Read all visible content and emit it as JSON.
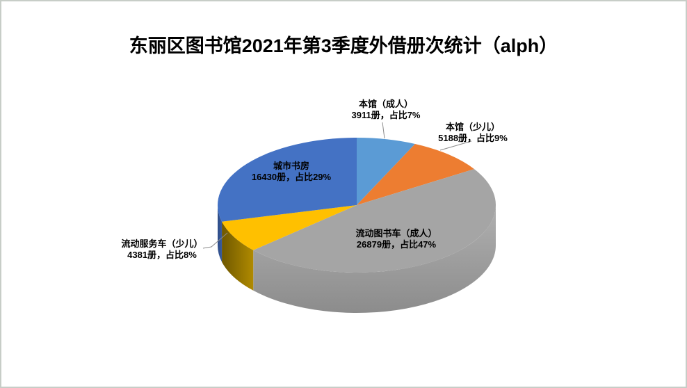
{
  "title": "东丽区图书馆2021年第3季度外借册次统计（alph）",
  "chart_data": {
    "type": "pie",
    "style": "3d",
    "title": "东丽区图书馆2021年第3季度外借册次统计（alph）",
    "legend": "none",
    "label_format": "{name} / {value}册，占比{pct}%",
    "direction": "clockwise",
    "start_angle_deg": 0,
    "slices": [
      {
        "name": "本馆（成人）",
        "value": 3911,
        "pct": 7,
        "value_label": "3911册，占比7%",
        "color": "#5B9BD5"
      },
      {
        "name": "本馆（少儿）",
        "value": 5188,
        "pct": 9,
        "value_label": "5188册，占比9%",
        "color": "#ED7D31"
      },
      {
        "name": "流动图书车（成人）",
        "value": 26879,
        "pct": 47,
        "value_label": "26879册，占比47%",
        "color": "#A5A5A5"
      },
      {
        "name": "流动服务车（少儿）",
        "value": 4381,
        "pct": 8,
        "value_label": "4381册，占比8%",
        "color": "#FFC000"
      },
      {
        "name": "城市书房",
        "value": 16430,
        "pct": 29,
        "value_label": "16430册，占比29%",
        "color": "#4472C4"
      }
    ],
    "colors": {
      "accent_light_blue": "#5B9BD5",
      "accent_orange": "#ED7D31",
      "accent_gray": "#A5A5A5",
      "accent_gold": "#FFC000",
      "accent_blue": "#4472C4",
      "leader_line": "#8C8C8C",
      "slide_border": "#C7CDC7"
    }
  }
}
